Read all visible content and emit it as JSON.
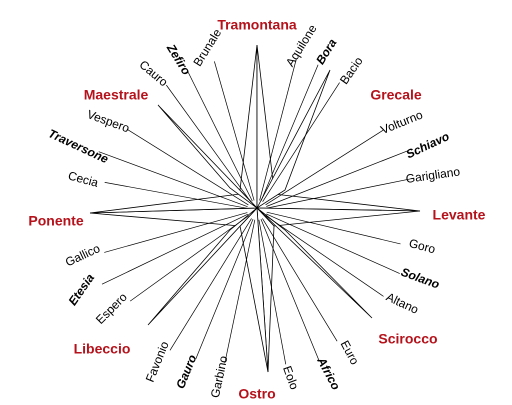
{
  "winds": [
    {
      "name": "Tramontana",
      "bearing": 0,
      "kind": "red"
    },
    {
      "name": "Brunale",
      "bearing": 337.5,
      "kind": "plain"
    },
    {
      "name": "Aquilone",
      "bearing": 22.5,
      "kind": "plain"
    },
    {
      "name": "Zefiro",
      "bearing": 320,
      "kind": "bold"
    },
    {
      "name": "Bora",
      "bearing": 30,
      "kind": "bold"
    },
    {
      "name": "Cauro",
      "bearing": 315,
      "kind": "plain"
    },
    {
      "name": "Bacio",
      "bearing": 45,
      "kind": "plain"
    },
    {
      "name": "Maestrale",
      "bearing": 300,
      "kind": "red"
    },
    {
      "name": "Grecale",
      "bearing": 60,
      "kind": "red"
    },
    {
      "name": "Vespero",
      "bearing": 290,
      "kind": "plain"
    },
    {
      "name": "Volturno",
      "bearing": 70,
      "kind": "plain"
    },
    {
      "name": "Traversone",
      "bearing": 280,
      "kind": "bold"
    },
    {
      "name": "Schiavo",
      "bearing": 80,
      "kind": "bold"
    },
    {
      "name": "Cecia",
      "bearing": 270,
      "kind": "plain"
    },
    {
      "name": "Garigliano",
      "bearing": 90,
      "kind": "plain"
    },
    {
      "name": "Ponente",
      "bearing": 265,
      "kind": "red"
    },
    {
      "name": "Levante",
      "bearing": 95,
      "kind": "red"
    },
    {
      "name": "Gallico",
      "bearing": 250,
      "kind": "plain"
    },
    {
      "name": "Goro",
      "bearing": 110,
      "kind": "plain"
    },
    {
      "name": "Etesia",
      "bearing": 240,
      "kind": "bold"
    },
    {
      "name": "Solano",
      "bearing": 120,
      "kind": "bold"
    },
    {
      "name": "Espero",
      "bearing": 230,
      "kind": "plain"
    },
    {
      "name": "Altano",
      "bearing": 130,
      "kind": "plain"
    },
    {
      "name": "Libeccio",
      "bearing": 225,
      "kind": "red"
    },
    {
      "name": "Scirocco",
      "bearing": 135,
      "kind": "red"
    },
    {
      "name": "Favonio",
      "bearing": 210,
      "kind": "plain"
    },
    {
      "name": "Euro",
      "bearing": 150,
      "kind": "plain"
    },
    {
      "name": "Gauro",
      "bearing": 200,
      "kind": "bold"
    },
    {
      "name": "Africo",
      "bearing": 160,
      "kind": "bold"
    },
    {
      "name": "Garbino",
      "bearing": 190,
      "kind": "plain"
    },
    {
      "name": "Eolo",
      "bearing": 170,
      "kind": "plain"
    },
    {
      "name": "Ostro",
      "bearing": 180,
      "kind": "red"
    }
  ],
  "colors": {
    "primary": "#b5121b",
    "ink": "#000000",
    "background": "#ffffff"
  }
}
